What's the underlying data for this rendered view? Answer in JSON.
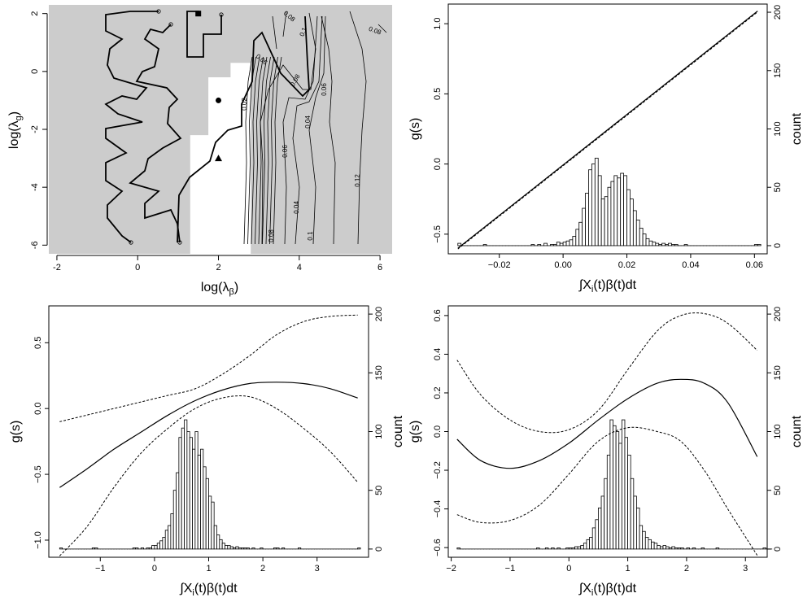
{
  "chart_data": [
    {
      "type": "contour",
      "panel": "top-left",
      "xlabel_main": "log(λ",
      "xlabel_sub": "β",
      "xlabel_close": ")",
      "ylabel_main": "log(λ",
      "ylabel_sub": "g",
      "ylabel_close": ")",
      "xlim": [
        -2.2,
        6.3
      ],
      "ylim": [
        -6.3,
        2.3
      ],
      "xticks": [
        -2,
        0,
        2,
        4,
        6
      ],
      "yticks": [
        -6,
        -4,
        -2,
        0,
        2
      ],
      "background_color": "#cccccc",
      "white_region": [
        [
          1.3,
          -6.3
        ],
        [
          2.8,
          -6.3
        ],
        [
          2.8,
          0.3
        ],
        [
          2.3,
          0.3
        ],
        [
          2.3,
          -0.2
        ],
        [
          1.75,
          -0.2
        ],
        [
          1.75,
          -2.2
        ],
        [
          1.3,
          -2.2
        ]
      ],
      "contour_labels": [
        "0.02",
        "0.04",
        "0.06",
        "0.08",
        "0.1",
        "0.12",
        "0.06",
        "0.04",
        "0.08",
        "0.08",
        "0.08",
        "0.1",
        "0.06"
      ],
      "markers": [
        {
          "shape": "square",
          "x": 1.5,
          "y": 2.0
        },
        {
          "shape": "circle",
          "x": 2.0,
          "y": -1.0
        },
        {
          "shape": "triangle",
          "x": 2.0,
          "y": -3.0
        }
      ]
    },
    {
      "type": "line+histogram",
      "panel": "top-right",
      "xlabel": "∫X",
      "xlabel_sub": "i",
      "xlabel_rest": "(t)β(t)dt",
      "ylabel": "g(s)",
      "ylabel_right": "count",
      "xlim": [
        -0.036,
        0.064
      ],
      "ylim": [
        -0.64,
        1.14
      ],
      "ylim_right": [
        -7,
        207
      ],
      "xticks": [
        -0.02,
        0.0,
        0.02,
        0.04,
        0.06
      ],
      "xtick_labels": [
        "−0.02",
        "0.00",
        "0.02",
        "0.04",
        "0.06"
      ],
      "yticks": [
        -0.5,
        0.0,
        0.5,
        1.0
      ],
      "ytick_labels": [
        "−0.5",
        "0.0",
        "0.5",
        "1.0"
      ],
      "yticks_right": [
        0,
        50,
        100,
        150,
        200
      ],
      "fit_line": {
        "x": [
          -0.033,
          0.061
        ],
        "y": [
          -0.6,
          1.09
        ]
      },
      "histogram": {
        "start": -0.033,
        "width": 0.001,
        "counts": [
          2,
          0,
          0,
          0,
          0,
          0,
          0,
          0,
          1,
          0,
          0,
          0,
          0,
          0,
          0,
          0,
          0,
          0,
          0,
          0,
          0,
          0,
          0,
          1,
          0,
          1,
          0,
          2,
          0,
          1,
          1,
          3,
          2,
          3,
          4,
          5,
          8,
          14,
          20,
          32,
          45,
          65,
          70,
          75,
          60,
          40,
          42,
          50,
          55,
          60,
          58,
          62,
          60,
          48,
          40,
          30,
          22,
          15,
          10,
          6,
          4,
          3,
          2,
          1,
          2,
          1,
          2,
          1,
          1,
          0,
          0,
          1,
          0,
          0,
          0,
          0,
          0,
          0,
          0,
          0,
          0,
          0,
          0,
          0,
          0,
          0,
          0,
          0,
          0,
          0,
          0,
          0,
          0,
          1,
          1
        ]
      }
    },
    {
      "type": "line+histogram",
      "panel": "bottom-left",
      "xlabel": "∫X",
      "xlabel_sub": "i",
      "xlabel_rest": "(t)β(t)dt",
      "ylabel": "g(s)",
      "ylabel_right": "count",
      "xlim": [
        -1.95,
        3.95
      ],
      "ylim": [
        -1.13,
        0.78
      ],
      "ylim_right": [
        -7,
        207
      ],
      "xticks": [
        -1,
        0,
        1,
        2,
        3
      ],
      "xtick_labels": [
        "−1",
        "0",
        "1",
        "2",
        "3"
      ],
      "yticks": [
        -1.0,
        -0.5,
        0.0,
        0.5
      ],
      "ytick_labels": [
        "−1.0",
        "−0.5",
        "0.0",
        "0.5"
      ],
      "yticks_right": [
        0,
        50,
        100,
        150,
        200
      ],
      "fit": {
        "x": [
          -1.75,
          -1.25,
          -0.75,
          -0.25,
          0.25,
          0.75,
          1.25,
          1.75,
          2.25,
          2.75,
          3.25,
          3.75
        ],
        "y": [
          -0.6,
          -0.46,
          -0.31,
          -0.18,
          -0.05,
          0.06,
          0.14,
          0.19,
          0.2,
          0.19,
          0.15,
          0.08
        ]
      },
      "upper_band": {
        "x": [
          -1.75,
          -1.25,
          -0.75,
          -0.25,
          0.25,
          0.75,
          1.25,
          1.75,
          2.25,
          2.75,
          3.25,
          3.75
        ],
        "y": [
          -0.1,
          -0.05,
          0.0,
          0.05,
          0.1,
          0.15,
          0.26,
          0.4,
          0.56,
          0.66,
          0.7,
          0.71
        ]
      },
      "lower_band": {
        "x": [
          -1.75,
          -1.25,
          -0.75,
          -0.25,
          0.25,
          0.75,
          1.25,
          1.75,
          2.25,
          2.75,
          3.25,
          3.75
        ],
        "y": [
          -1.12,
          -0.9,
          -0.6,
          -0.34,
          -0.15,
          0.0,
          0.08,
          0.09,
          0.0,
          -0.15,
          -0.33,
          -0.56
        ]
      },
      "histogram": {
        "start": -1.75,
        "width": 0.05,
        "counts": [
          1,
          0,
          0,
          0,
          0,
          0,
          0,
          0,
          0,
          0,
          0,
          0,
          1,
          1,
          0,
          0,
          0,
          0,
          0,
          0,
          0,
          0,
          0,
          0,
          0,
          0,
          0,
          1,
          1,
          0,
          1,
          0,
          1,
          1,
          3,
          3,
          5,
          7,
          10,
          16,
          20,
          30,
          50,
          65,
          95,
          103,
          110,
          100,
          95,
          85,
          100,
          80,
          85,
          70,
          60,
          45,
          40,
          20,
          12,
          8,
          5,
          3,
          3,
          2,
          1,
          2,
          1,
          1,
          1,
          1,
          0,
          1,
          0,
          0,
          1,
          0,
          0,
          0,
          0,
          1,
          1,
          0,
          1,
          0,
          0,
          0,
          0,
          0,
          1,
          0,
          0,
          0,
          0,
          0,
          0,
          0,
          0,
          0,
          0,
          0,
          0,
          0,
          0,
          0,
          0,
          0,
          0,
          0,
          0,
          0,
          1
        ]
      }
    },
    {
      "type": "line+histogram",
      "panel": "bottom-right",
      "xlabel": "∫X",
      "xlabel_sub": "i",
      "xlabel_rest": "(t)β(t)dt",
      "ylabel": "g(s)",
      "ylabel_right": "count",
      "xlim": [
        -2.05,
        3.37
      ],
      "ylim": [
        -0.65,
        0.65
      ],
      "ylim_right": [
        -7,
        207
      ],
      "xticks": [
        -2,
        -1,
        0,
        1,
        2,
        3
      ],
      "xtick_labels": [
        "−2",
        "−1",
        "0",
        "1",
        "2",
        "3"
      ],
      "yticks": [
        -0.6,
        -0.4,
        -0.2,
        0.0,
        0.2,
        0.4,
        0.6
      ],
      "ytick_labels": [
        "−0.6",
        "−0.4",
        "−0.2",
        "0.0",
        "0.2",
        "0.4",
        "0.6"
      ],
      "yticks_right": [
        0,
        50,
        100,
        150,
        200
      ],
      "fit": {
        "x": [
          -1.9,
          -1.5,
          -1.0,
          -0.5,
          0.0,
          0.5,
          1.0,
          1.5,
          1.9,
          2.3,
          2.7,
          3.2
        ],
        "y": [
          -0.04,
          -0.15,
          -0.19,
          -0.15,
          -0.06,
          0.06,
          0.17,
          0.25,
          0.27,
          0.25,
          0.15,
          -0.13
        ]
      },
      "upper_band": {
        "x": [
          -1.9,
          -1.5,
          -1.0,
          -0.5,
          0.0,
          0.5,
          1.0,
          1.5,
          1.9,
          2.3,
          2.7,
          3.2
        ],
        "y": [
          0.37,
          0.19,
          0.06,
          0.0,
          0.01,
          0.11,
          0.32,
          0.52,
          0.6,
          0.61,
          0.56,
          0.42
        ]
      },
      "lower_band": {
        "x": [
          -1.9,
          -1.5,
          -1.0,
          -0.5,
          0.0,
          0.5,
          1.0,
          1.5,
          1.9,
          2.3,
          2.7,
          3.2
        ],
        "y": [
          -0.43,
          -0.47,
          -0.46,
          -0.38,
          -0.22,
          -0.05,
          0.02,
          0.0,
          -0.05,
          -0.2,
          -0.4,
          -0.64
        ]
      },
      "histogram": {
        "start": -1.9,
        "width": 0.05,
        "counts": [
          1,
          0,
          0,
          0,
          0,
          0,
          0,
          0,
          0,
          0,
          0,
          0,
          0,
          0,
          0,
          0,
          0,
          0,
          0,
          0,
          0,
          0,
          0,
          0,
          0,
          0,
          0,
          1,
          0,
          0,
          1,
          0,
          1,
          0,
          1,
          0,
          0,
          1,
          1,
          1,
          2,
          2,
          3,
          5,
          8,
          10,
          18,
          25,
          35,
          45,
          60,
          80,
          110,
          105,
          100,
          90,
          110,
          95,
          80,
          60,
          45,
          35,
          20,
          15,
          10,
          8,
          6,
          5,
          3,
          2,
          3,
          2,
          1,
          2,
          1,
          1,
          1,
          0,
          1,
          0,
          1,
          0,
          0,
          1,
          0,
          0,
          0,
          0,
          1,
          0,
          0,
          0,
          0,
          0,
          0,
          0,
          0,
          0,
          0,
          0,
          0,
          0,
          0,
          0,
          1,
          0,
          0
        ]
      }
    }
  ]
}
